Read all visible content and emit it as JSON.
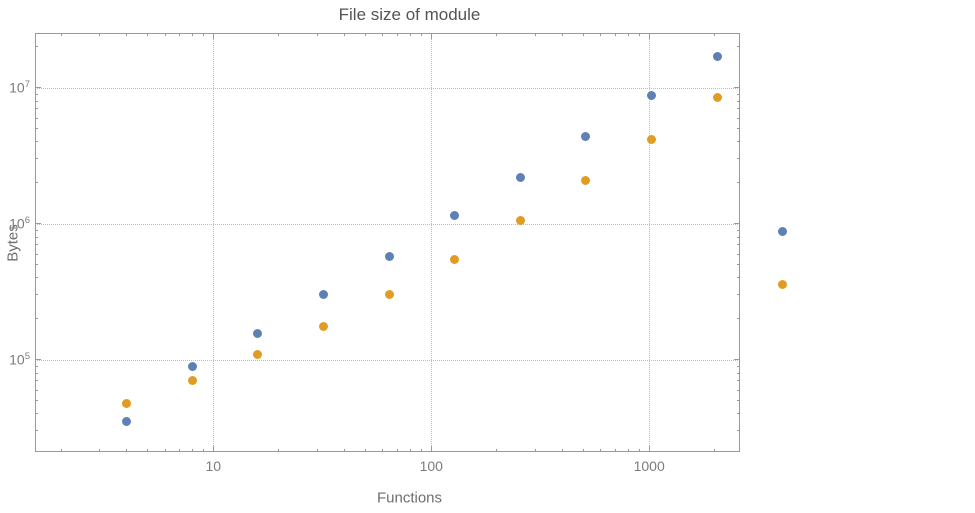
{
  "title": "File size of module",
  "axis": {
    "x_label": "Functions",
    "y_label": "Bytes"
  },
  "colors": {
    "series1": "#5e81b5",
    "series2": "#e19c24",
    "frame": "#9a9a9a",
    "grid": "#bdbdbd",
    "tick_text": "#7c7c7c",
    "title_text": "#545454",
    "background": "#ffffff"
  },
  "chart_data": {
    "type": "scatter",
    "title": "File size of module",
    "xlabel": "Functions",
    "ylabel": "Bytes",
    "x_scale": "log",
    "y_scale": "log",
    "grid": true,
    "legend": false,
    "xlim": [
      1.52,
      2610
    ],
    "ylim": [
      21000,
      25300000
    ],
    "x": [
      4,
      8,
      16,
      32,
      64,
      128,
      256,
      512,
      1024,
      2048,
      4096
    ],
    "series": [
      {
        "name": "series-blue",
        "color": "#5e81b5",
        "values": [
          35000,
          90000,
          155000,
          300000,
          580000,
          1150000,
          2200000,
          4400000,
          8800000,
          17000000,
          880000
        ]
      },
      {
        "name": "series-orange",
        "color": "#e19c24",
        "values": [
          48000,
          70000,
          110000,
          175000,
          300000,
          550000,
          1050000,
          2100000,
          4200000,
          8500000,
          360000
        ]
      }
    ],
    "x_ticks": [
      {
        "value": 10,
        "label": "10"
      },
      {
        "value": 100,
        "label": "100"
      },
      {
        "value": 1000,
        "label": "1000"
      }
    ],
    "y_ticks": [
      {
        "value": 100000,
        "base": "10",
        "exp": "5"
      },
      {
        "value": 1000000,
        "base": "10",
        "exp": "6"
      },
      {
        "value": 10000000,
        "base": "10",
        "exp": "7"
      }
    ]
  }
}
